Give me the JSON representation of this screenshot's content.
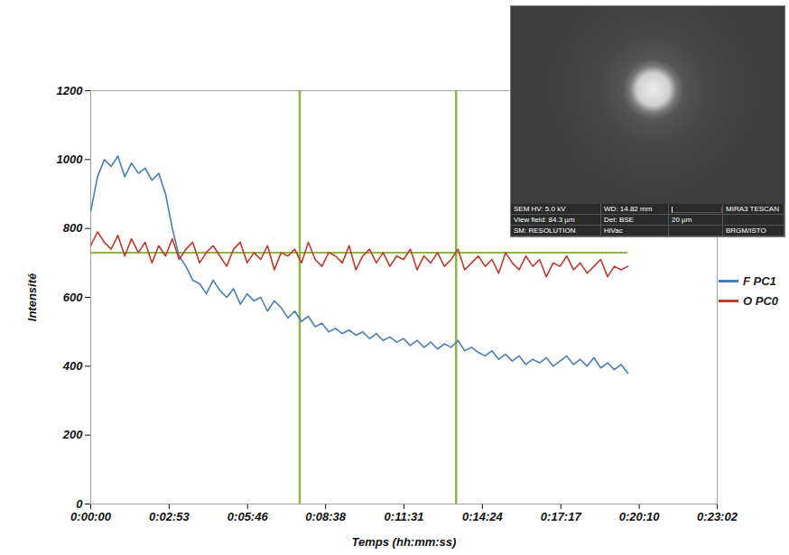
{
  "chart_data": {
    "type": "line",
    "x_label": "Temps (hh:mm:ss)",
    "y_label": "Intensité",
    "x": [
      0,
      15,
      30,
      45,
      60,
      75,
      90,
      105,
      120,
      135,
      150,
      165,
      180,
      195,
      210,
      225,
      240,
      255,
      270,
      285,
      300,
      315,
      330,
      345,
      360,
      375,
      390,
      405,
      420,
      435,
      450,
      465,
      480,
      495,
      510,
      525,
      540,
      555,
      570,
      585,
      600,
      615,
      630,
      645,
      660,
      675,
      690,
      705,
      720,
      735,
      750,
      765,
      780,
      795,
      810,
      825,
      840,
      855,
      870,
      885,
      900,
      915,
      930,
      945,
      960,
      975,
      990,
      1005,
      1020,
      1035,
      1050,
      1065,
      1080,
      1095,
      1110,
      1125,
      1140,
      1155,
      1170,
      1185
    ],
    "series": [
      {
        "name": "F PC1",
        "color": "#4a7ebb",
        "values": [
          850,
          950,
          1000,
          980,
          1010,
          950,
          990,
          960,
          975,
          940,
          960,
          900,
          800,
          720,
          690,
          650,
          640,
          610,
          650,
          620,
          600,
          625,
          580,
          610,
          590,
          600,
          560,
          590,
          570,
          540,
          560,
          530,
          545,
          515,
          525,
          500,
          510,
          495,
          505,
          490,
          500,
          480,
          495,
          475,
          485,
          470,
          480,
          460,
          475,
          455,
          470,
          450,
          465,
          455,
          475,
          445,
          455,
          440,
          430,
          445,
          420,
          435,
          415,
          430,
          405,
          420,
          410,
          425,
          400,
          415,
          430,
          405,
          420,
          400,
          425,
          395,
          410,
          390,
          405,
          380
        ]
      },
      {
        "name": "O PC0",
        "color": "#c0392b",
        "values": [
          750,
          790,
          760,
          740,
          780,
          720,
          770,
          730,
          760,
          700,
          750,
          720,
          770,
          710,
          740,
          760,
          700,
          730,
          750,
          720,
          690,
          740,
          760,
          700,
          730,
          710,
          750,
          680,
          730,
          720,
          740,
          700,
          760,
          710,
          690,
          730,
          720,
          700,
          750,
          680,
          720,
          740,
          700,
          730,
          690,
          720,
          710,
          740,
          680,
          720,
          700,
          730,
          690,
          710,
          740,
          680,
          700,
          720,
          690,
          710,
          670,
          730,
          700,
          680,
          720,
          690,
          710,
          660,
          700,
          690,
          720,
          680,
          700,
          670,
          690,
          710,
          660,
          690,
          680,
          690
        ]
      }
    ],
    "xlim": [
      0,
      1382
    ],
    "xticks": [
      {
        "value": 0,
        "label": "0:00:00"
      },
      {
        "value": 173,
        "label": "0:02:53"
      },
      {
        "value": 346,
        "label": "0:05:46"
      },
      {
        "value": 518,
        "label": "0:08:38"
      },
      {
        "value": 691,
        "label": "0:11:31"
      },
      {
        "value": 864,
        "label": "0:14:24"
      },
      {
        "value": 1037,
        "label": "0:17:17"
      },
      {
        "value": 1210,
        "label": "0:20:10"
      },
      {
        "value": 1382,
        "label": "0:23:02"
      }
    ],
    "ylim": [
      0,
      1200
    ],
    "yticks": [
      0,
      200,
      400,
      600,
      800,
      1000,
      1200
    ],
    "grid": false,
    "legend": "right",
    "reference_lines": {
      "x": [
        461,
        806
      ],
      "y": 730,
      "color": "#8db844"
    }
  },
  "inset": {
    "type": "image",
    "info": [
      [
        "SEM HV: 5.0 kV",
        "WD: 14.82 mm",
        "MIRA3 TESCAN"
      ],
      [
        "View field: 84.3 µm",
        "Det: BSE",
        "20 µm"
      ],
      [
        "SM: RESOLUTION",
        "HiVac",
        "BRGM/ISTO"
      ]
    ]
  }
}
